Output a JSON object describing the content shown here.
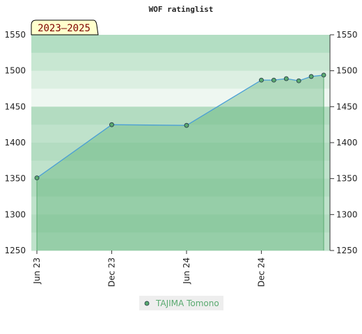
{
  "chart_data": {
    "type": "line",
    "title": "WOF ratinglist",
    "annotation": "2023–2025",
    "x": [
      "2023-06",
      "2023-12",
      "2024-06",
      "2024-12",
      "2025-01",
      "2025-02",
      "2025-03",
      "2025-04",
      "2025-05"
    ],
    "series": [
      {
        "name": "TAJIMA Tomono",
        "color": "#5aaa70",
        "line_color": "#4a9fd6",
        "values": [
          1351,
          1425,
          1424,
          1487,
          1487,
          1489,
          1486,
          1492,
          1494
        ]
      }
    ],
    "xlim": [
      "2023-06",
      "2025-05"
    ],
    "xticks": [
      {
        "value": "2023-06",
        "label": "Jun 23"
      },
      {
        "value": "2023-12",
        "label": "Dec 23"
      },
      {
        "value": "2024-06",
        "label": "Jun 24"
      },
      {
        "value": "2024-12",
        "label": "Dec 24"
      }
    ],
    "ylim": [
      1250,
      1550
    ],
    "yticks": [
      1250,
      1300,
      1350,
      1400,
      1450,
      1500,
      1550
    ],
    "legend": "bottom"
  }
}
